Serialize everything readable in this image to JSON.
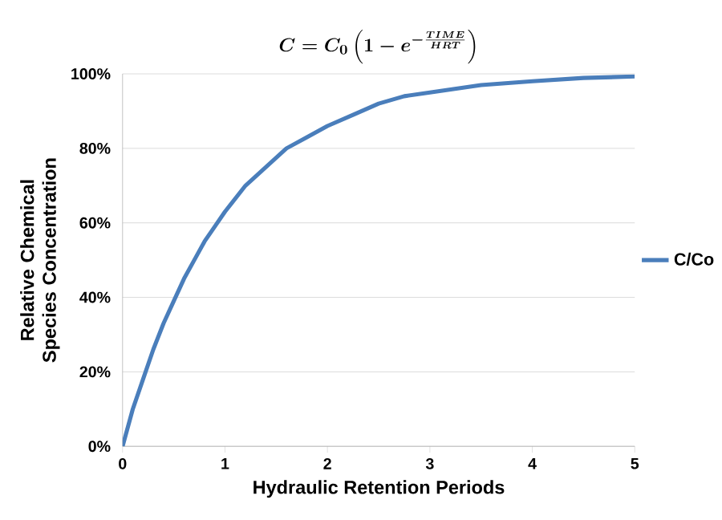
{
  "chart_data": {
    "type": "line",
    "title": "\\boldsymbol{C = C_0\\left(1 - e^{-\\frac{TIME}{HRT}}\\right)}",
    "xlabel": "Hydraulic Retention Periods",
    "ylabel": "Relative Chemical Species Concentration",
    "x": [
      0,
      0.1,
      0.2,
      0.3,
      0.4,
      0.5,
      0.6,
      0.7,
      0.8,
      0.9,
      1,
      1.2,
      1.4,
      1.6,
      1.8,
      2,
      2.25,
      2.5,
      2.75,
      3,
      3.5,
      4,
      4.5,
      5
    ],
    "series": [
      {
        "name": "C/Co",
        "color": "#4a7ebb",
        "values": [
          0,
          10,
          18,
          26,
          33,
          39,
          45,
          50,
          55,
          59,
          63,
          70,
          75,
          80,
          83,
          86,
          89,
          92,
          94,
          95,
          97,
          98,
          98.9,
          99.3
        ]
      }
    ],
    "xlim": [
      0,
      5
    ],
    "xticks": [
      0,
      1,
      2,
      3,
      4,
      5
    ],
    "ylim": [
      0,
      100
    ],
    "yticks": [
      {
        "value": 0,
        "label": "0%"
      },
      {
        "value": 20,
        "label": "20%"
      },
      {
        "value": 40,
        "label": "40%"
      },
      {
        "value": 60,
        "label": "60%"
      },
      {
        "value": 80,
        "label": "80%"
      },
      {
        "value": 100,
        "label": "100%"
      }
    ],
    "grid": "y",
    "legend": "right",
    "marker": "none",
    "line_style": "solid"
  }
}
